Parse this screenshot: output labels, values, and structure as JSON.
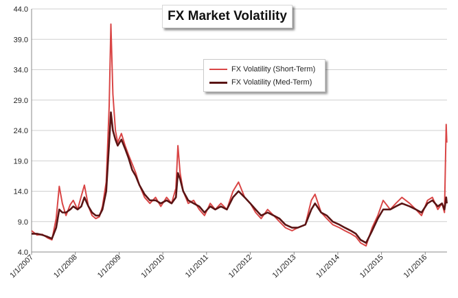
{
  "chart_data": {
    "type": "line",
    "title": "FX Market Volatility",
    "xlabel": "",
    "ylabel": "",
    "ylim": [
      4.0,
      44.0
    ],
    "yticks": [
      "4.0",
      "9.0",
      "14.0",
      "19.0",
      "24.0",
      "29.0",
      "34.0",
      "39.0",
      "44.0"
    ],
    "xticks": [
      "1/1/2007",
      "1/1/2008",
      "1/1/2009",
      "1/1/2010",
      "1/1/2011",
      "1/1/2012",
      "1/1/2013",
      "1/1/2014",
      "1/1/2015",
      "1/1/2016"
    ],
    "xlim": [
      "2007-01-01",
      "2016-07-01"
    ],
    "grid": "horizontal",
    "legend_position": "top-center",
    "series": [
      {
        "name": "FX Volatility (Short-Term)",
        "color": "#d94545",
        "x": [
          "2007-01-01",
          "2007-02-15",
          "2007-04-01",
          "2007-05-15",
          "2007-06-20",
          "2007-07-25",
          "2007-08-20",
          "2007-09-15",
          "2007-10-15",
          "2007-11-20",
          "2007-12-15",
          "2008-01-20",
          "2008-02-20",
          "2008-03-17",
          "2008-04-20",
          "2008-05-20",
          "2008-06-20",
          "2008-07-20",
          "2008-08-15",
          "2008-09-15",
          "2008-10-10",
          "2008-10-24",
          "2008-11-10",
          "2008-12-01",
          "2008-12-20",
          "2009-01-20",
          "2009-02-20",
          "2009-03-20",
          "2009-04-20",
          "2009-05-20",
          "2009-06-20",
          "2009-08-01",
          "2009-09-15",
          "2009-11-01",
          "2009-12-15",
          "2010-02-01",
          "2010-03-15",
          "2010-04-20",
          "2010-05-07",
          "2010-05-25",
          "2010-06-20",
          "2010-08-01",
          "2010-09-15",
          "2010-11-01",
          "2010-12-15",
          "2011-02-01",
          "2011-03-15",
          "2011-05-01",
          "2011-06-20",
          "2011-08-10",
          "2011-09-25",
          "2011-11-15",
          "2012-01-01",
          "2012-02-15",
          "2012-04-01",
          "2012-05-25",
          "2012-07-15",
          "2012-09-01",
          "2012-10-20",
          "2012-12-15",
          "2013-02-01",
          "2013-04-05",
          "2013-05-25",
          "2013-06-25",
          "2013-08-15",
          "2013-10-01",
          "2013-11-20",
          "2014-01-15",
          "2014-03-01",
          "2014-04-20",
          "2014-06-01",
          "2014-07-10",
          "2014-08-25",
          "2014-10-15",
          "2014-12-01",
          "2015-01-15",
          "2015-03-15",
          "2015-05-01",
          "2015-06-20",
          "2015-08-24",
          "2015-10-15",
          "2015-12-01",
          "2016-01-20",
          "2016-03-01",
          "2016-04-15",
          "2016-05-20",
          "2016-06-10",
          "2016-06-24",
          "2016-06-29"
        ],
        "values": [
          7.5,
          6.8,
          6.9,
          6.3,
          6.0,
          9.5,
          14.8,
          12.0,
          10.0,
          11.8,
          12.5,
          11.0,
          13.2,
          15.0,
          11.5,
          10.0,
          9.5,
          9.8,
          11.5,
          15.5,
          28.0,
          41.5,
          30.0,
          24.0,
          22.0,
          23.5,
          21.5,
          20.0,
          18.5,
          17.0,
          15.0,
          13.0,
          12.0,
          13.0,
          11.5,
          13.0,
          12.0,
          14.5,
          21.5,
          17.0,
          14.0,
          12.0,
          12.5,
          11.0,
          10.0,
          12.0,
          11.0,
          12.0,
          11.0,
          14.0,
          15.5,
          13.0,
          12.0,
          10.5,
          9.5,
          11.0,
          10.0,
          9.0,
          8.0,
          7.5,
          8.0,
          8.5,
          12.5,
          13.5,
          10.5,
          9.5,
          8.5,
          8.0,
          7.5,
          7.0,
          6.5,
          5.5,
          5.0,
          8.0,
          10.0,
          12.5,
          11.0,
          12.0,
          13.0,
          12.0,
          11.0,
          10.0,
          12.5,
          13.0,
          11.0,
          12.0,
          10.5,
          25.0,
          22.0
        ]
      },
      {
        "name": "FX Volatility (Med-Term)",
        "color": "#5a1414",
        "x": [
          "2007-01-01",
          "2007-02-15",
          "2007-04-01",
          "2007-05-15",
          "2007-06-20",
          "2007-07-25",
          "2007-08-20",
          "2007-09-15",
          "2007-10-15",
          "2007-11-20",
          "2007-12-15",
          "2008-01-20",
          "2008-02-20",
          "2008-03-17",
          "2008-04-20",
          "2008-05-20",
          "2008-06-20",
          "2008-07-20",
          "2008-08-15",
          "2008-09-15",
          "2008-10-10",
          "2008-10-24",
          "2008-11-10",
          "2008-12-01",
          "2008-12-20",
          "2009-01-20",
          "2009-02-20",
          "2009-03-20",
          "2009-04-20",
          "2009-05-20",
          "2009-06-20",
          "2009-08-01",
          "2009-09-15",
          "2009-11-01",
          "2009-12-15",
          "2010-02-01",
          "2010-03-15",
          "2010-04-20",
          "2010-05-07",
          "2010-05-25",
          "2010-06-20",
          "2010-08-01",
          "2010-09-15",
          "2010-11-01",
          "2010-12-15",
          "2011-02-01",
          "2011-03-15",
          "2011-05-01",
          "2011-06-20",
          "2011-08-10",
          "2011-09-25",
          "2011-11-15",
          "2012-01-01",
          "2012-02-15",
          "2012-04-01",
          "2012-05-25",
          "2012-07-15",
          "2012-09-01",
          "2012-10-20",
          "2012-12-15",
          "2013-02-01",
          "2013-04-05",
          "2013-05-25",
          "2013-06-25",
          "2013-08-15",
          "2013-10-01",
          "2013-11-20",
          "2014-01-15",
          "2014-03-01",
          "2014-04-20",
          "2014-06-01",
          "2014-07-10",
          "2014-08-25",
          "2014-10-15",
          "2014-12-01",
          "2015-01-15",
          "2015-03-15",
          "2015-05-01",
          "2015-06-20",
          "2015-08-24",
          "2015-10-15",
          "2015-12-01",
          "2016-01-20",
          "2016-03-01",
          "2016-04-15",
          "2016-05-20",
          "2016-06-10",
          "2016-06-24",
          "2016-06-29"
        ],
        "values": [
          7.0,
          7.0,
          6.8,
          6.5,
          6.2,
          8.0,
          11.0,
          10.5,
          10.5,
          11.0,
          11.5,
          11.0,
          11.5,
          13.0,
          11.5,
          10.5,
          10.0,
          10.0,
          11.0,
          14.0,
          22.0,
          27.0,
          24.0,
          22.5,
          21.5,
          22.5,
          21.0,
          19.5,
          17.5,
          16.5,
          15.0,
          13.5,
          12.5,
          12.5,
          12.0,
          12.5,
          12.0,
          13.0,
          17.0,
          16.0,
          14.0,
          12.5,
          12.0,
          11.5,
          10.5,
          11.5,
          11.0,
          11.5,
          11.0,
          13.0,
          14.0,
          13.0,
          12.0,
          11.0,
          10.0,
          10.5,
          10.0,
          9.5,
          8.5,
          8.0,
          8.0,
          8.5,
          11.0,
          12.0,
          10.5,
          10.0,
          9.0,
          8.5,
          8.0,
          7.5,
          7.0,
          6.0,
          5.5,
          7.5,
          9.5,
          11.0,
          11.0,
          11.5,
          12.0,
          11.5,
          11.0,
          10.5,
          12.0,
          12.5,
          11.5,
          12.0,
          11.0,
          13.0,
          12.0
        ]
      }
    ]
  }
}
